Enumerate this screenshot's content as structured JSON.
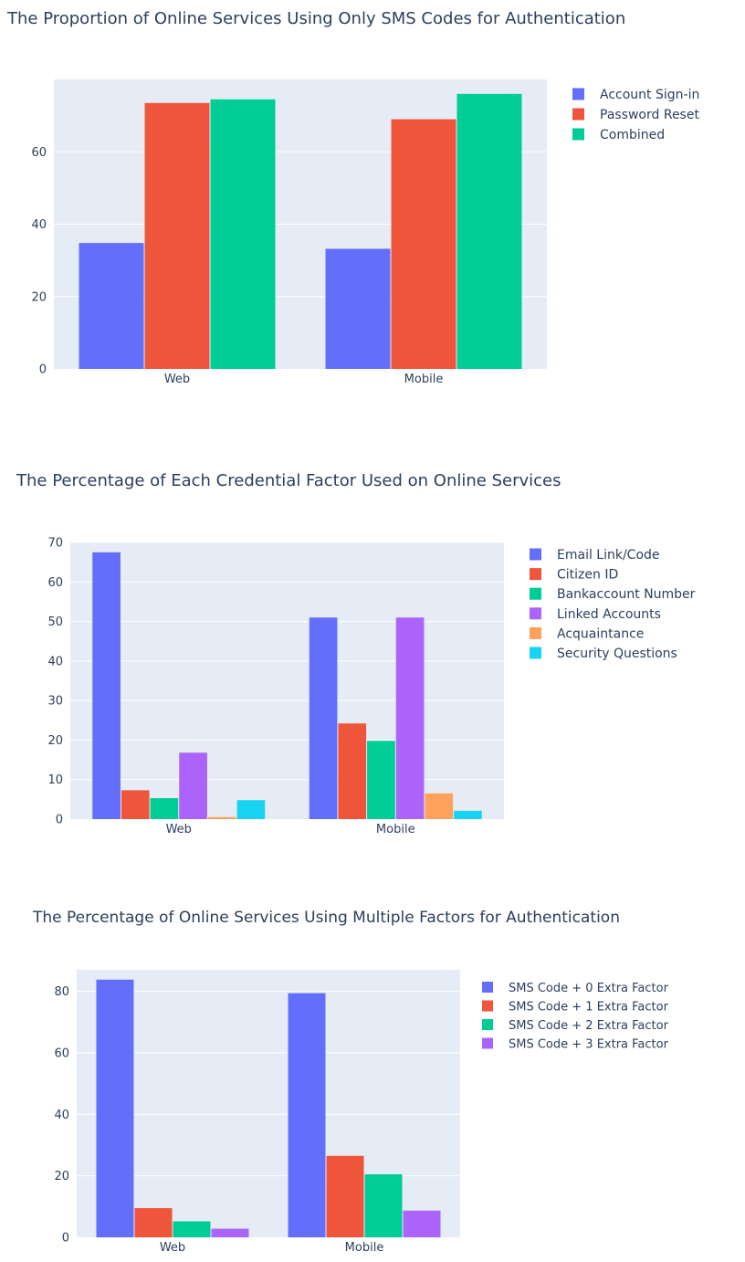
{
  "chart_data": [
    {
      "type": "bar",
      "title": "The Proportion of Online Services Using Only SMS Codes for Authentication",
      "categories": [
        "Web",
        "Mobile"
      ],
      "ylim": [
        0,
        80
      ],
      "yticks": [
        0,
        20,
        40,
        60
      ],
      "series": [
        {
          "name": "Account Sign-in",
          "color": "#636efa",
          "values": [
            34.8,
            33.2
          ]
        },
        {
          "name": "Password Reset",
          "color": "#ef553b",
          "values": [
            73.5,
            69.0
          ]
        },
        {
          "name": "Combined",
          "color": "#00cc96",
          "values": [
            74.5,
            76.0
          ]
        }
      ]
    },
    {
      "type": "bar",
      "title": "The Percentage of Each Credential Factor Used on Online Services",
      "categories": [
        "Web",
        "Mobile"
      ],
      "ylim": [
        0,
        70
      ],
      "yticks": [
        0,
        10,
        20,
        30,
        40,
        50,
        60,
        70
      ],
      "series": [
        {
          "name": "Email Link/Code",
          "color": "#636efa",
          "values": [
            67.5,
            51.0
          ]
        },
        {
          "name": "Citizen ID",
          "color": "#ef553b",
          "values": [
            7.3,
            24.2
          ]
        },
        {
          "name": "Bankaccount Number",
          "color": "#00cc96",
          "values": [
            5.3,
            19.8
          ]
        },
        {
          "name": "Linked Accounts",
          "color": "#ab63fa",
          "values": [
            16.8,
            51.0
          ]
        },
        {
          "name": "Acquaintance",
          "color": "#ffa15a",
          "values": [
            0.5,
            6.5
          ]
        },
        {
          "name": "Security Questions",
          "color": "#19d3f3",
          "values": [
            4.8,
            2.1
          ]
        }
      ]
    },
    {
      "type": "bar",
      "title": "The Percentage of Online Services Using Multiple Factors for Authentication",
      "categories": [
        "Web",
        "Mobile"
      ],
      "ylim": [
        0,
        87
      ],
      "yticks": [
        0,
        20,
        40,
        60,
        80
      ],
      "series": [
        {
          "name": "SMS Code + 0 Extra Factor",
          "color": "#636efa",
          "values": [
            83.8,
            79.4
          ]
        },
        {
          "name": "SMS Code + 1 Extra Factor",
          "color": "#ef553b",
          "values": [
            9.5,
            26.5
          ]
        },
        {
          "name": "SMS Code + 2 Extra Factor",
          "color": "#00cc96",
          "values": [
            5.2,
            20.5
          ]
        },
        {
          "name": "SMS Code + 3 Extra Factor",
          "color": "#ab63fa",
          "values": [
            2.8,
            8.7
          ]
        }
      ]
    }
  ]
}
